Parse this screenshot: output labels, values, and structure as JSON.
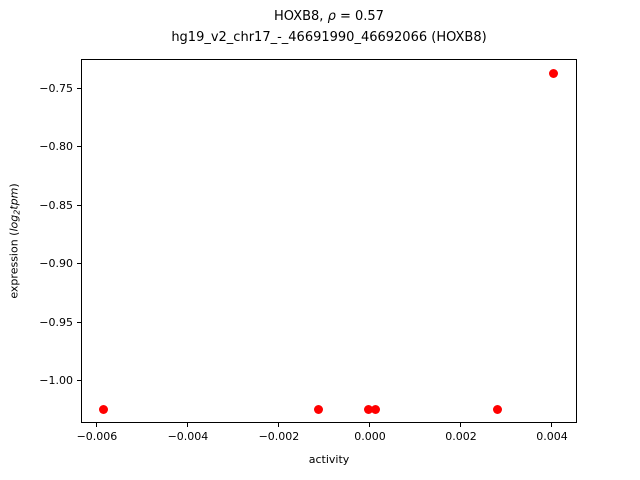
{
  "chart_data": {
    "type": "scatter",
    "title": "HOXB8, ρ = 0.57",
    "title_parts": {
      "prefix": "HOXB8, ",
      "rho": "ρ",
      "suffix": " = 0.57"
    },
    "subtitle": "hg19_v2_chr17_-_46691990_46692066 (HOXB8)",
    "xlabel": "activity",
    "ylabel": "expression (log2tpm)",
    "ylabel_parts": {
      "prefix": "expression (",
      "log": "log",
      "sub": "2",
      "tpm": "tpm",
      "suffix": ")"
    },
    "marker_color": "#ff0000",
    "grid": false,
    "legend": null,
    "xlim": [
      -0.00635,
      0.00455
    ],
    "ylim": [
      -1.0363,
      -0.7252
    ],
    "x_ticks": [
      -0.006,
      -0.004,
      -0.002,
      0.0,
      0.002,
      0.004
    ],
    "x_tick_labels": [
      "−0.006",
      "−0.004",
      "−0.002",
      "0.000",
      "0.002",
      "0.004"
    ],
    "y_ticks": [
      -0.75,
      -0.8,
      -0.85,
      -0.9,
      -0.95,
      -1.0
    ],
    "y_tick_labels": [
      "−0.75",
      "−0.80",
      "−0.85",
      "−0.90",
      "−0.95",
      "−1.00"
    ],
    "points": [
      {
        "x": -0.00585,
        "y": -1.025
      },
      {
        "x": -0.00114,
        "y": -1.025
      },
      {
        "x": -4e-05,
        "y": -1.025
      },
      {
        "x": 0.00013,
        "y": -1.025
      },
      {
        "x": 0.00281,
        "y": -1.025
      },
      {
        "x": 0.00404,
        "y": -0.738
      }
    ]
  }
}
